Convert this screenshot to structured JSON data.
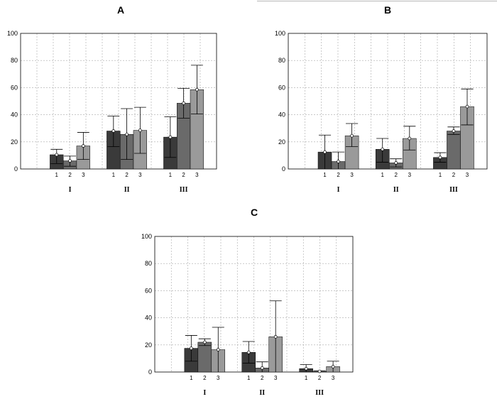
{
  "colors": {
    "series_1": "#3a3a3a",
    "series_2": "#6a6a6a",
    "series_3": "#9a9a9a",
    "grid": "#a8a8a8",
    "marker_fill": "#ffffff"
  },
  "chart_data": [
    {
      "type": "bar",
      "title": "A",
      "ylim": [
        0,
        100
      ],
      "yticks": [
        "0",
        "20",
        "40",
        "60",
        "80",
        "100"
      ],
      "grid": true,
      "error_bars": true,
      "groups": [
        {
          "label": "I",
          "bars": [
            {
              "label": "1",
              "value": 10.5,
              "err_low": 4,
              "err_high": 14.5
            },
            {
              "label": "2",
              "value": 6,
              "err_low": 2,
              "err_high": 9.5
            },
            {
              "label": "3",
              "value": 17,
              "err_low": 7,
              "err_high": 27
            }
          ]
        },
        {
          "label": "II",
          "bars": [
            {
              "label": "1",
              "value": 28,
              "err_low": 16.5,
              "err_high": 39
            },
            {
              "label": "2",
              "value": 25.5,
              "err_low": 7,
              "err_high": 44.5
            },
            {
              "label": "3",
              "value": 28.5,
              "err_low": 11.5,
              "err_high": 45.5
            }
          ]
        },
        {
          "label": "III",
          "bars": [
            {
              "label": "1",
              "value": 23.5,
              "err_low": 8.5,
              "err_high": 38.5
            },
            {
              "label": "2",
              "value": 48.5,
              "err_low": 37.5,
              "err_high": 59.5
            },
            {
              "label": "3",
              "value": 58.5,
              "err_low": 40.5,
              "err_high": 76.5
            }
          ]
        }
      ]
    },
    {
      "type": "bar",
      "title": "B",
      "ylim": [
        0,
        100
      ],
      "yticks": [
        "0",
        "20",
        "40",
        "60",
        "80",
        "100"
      ],
      "grid": true,
      "error_bars": true,
      "groups": [
        {
          "label": "I",
          "bars": [
            {
              "label": "1",
              "value": 12.5,
              "err_low": 0,
              "err_high": 25
            },
            {
              "label": "2",
              "value": 5.5,
              "err_low": 0,
              "err_high": 12.5
            },
            {
              "label": "3",
              "value": 24.5,
              "err_low": 16.5,
              "err_high": 33.5
            }
          ]
        },
        {
          "label": "II",
          "bars": [
            {
              "label": "1",
              "value": 14.5,
              "err_low": 5,
              "err_high": 22.5
            },
            {
              "label": "2",
              "value": 4.5,
              "err_low": 1.5,
              "err_high": 7.5
            },
            {
              "label": "3",
              "value": 22.5,
              "err_low": 14,
              "err_high": 31.5
            }
          ]
        },
        {
          "label": "III",
          "bars": [
            {
              "label": "1",
              "value": 8.5,
              "err_low": 5,
              "err_high": 12
            },
            {
              "label": "2",
              "value": 28,
              "err_low": 25.5,
              "err_high": 31
            },
            {
              "label": "3",
              "value": 46,
              "err_low": 32.5,
              "err_high": 59
            }
          ]
        }
      ]
    },
    {
      "type": "bar",
      "title": "C",
      "ylim": [
        0,
        100
      ],
      "yticks": [
        "0",
        "20",
        "40",
        "60",
        "80",
        "100"
      ],
      "grid": true,
      "error_bars": true,
      "groups": [
        {
          "label": "I",
          "bars": [
            {
              "label": "1",
              "value": 17.5,
              "err_low": 8,
              "err_high": 27
            },
            {
              "label": "2",
              "value": 22,
              "err_low": 19.5,
              "err_high": 24.5
            },
            {
              "label": "3",
              "value": 16.5,
              "err_low": 0,
              "err_high": 33
            }
          ]
        },
        {
          "label": "II",
          "bars": [
            {
              "label": "1",
              "value": 14.5,
              "err_low": 6.5,
              "err_high": 22.5
            },
            {
              "label": "2",
              "value": 3,
              "err_low": 0,
              "err_high": 7.5
            },
            {
              "label": "3",
              "value": 26,
              "err_low": 0,
              "err_high": 52.5
            }
          ]
        },
        {
          "label": "III",
          "bars": [
            {
              "label": "1",
              "value": 2.5,
              "err_low": 0,
              "err_high": 5.5
            },
            {
              "label": "2",
              "value": 0.5,
              "err_low": 0,
              "err_high": 1
            },
            {
              "label": "3",
              "value": 4,
              "err_low": 0,
              "err_high": 8
            }
          ]
        }
      ]
    }
  ]
}
